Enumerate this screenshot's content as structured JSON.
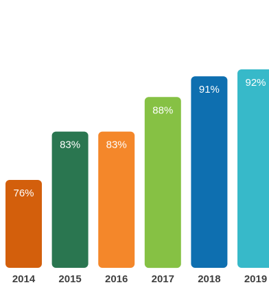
{
  "chart_data": {
    "type": "bar",
    "title": "",
    "xlabel": "",
    "ylabel": "",
    "ylim": [
      0,
      100
    ],
    "categories": [
      "2014",
      "2015",
      "2016",
      "2017",
      "2018",
      "2019"
    ],
    "values": [
      76,
      83,
      83,
      88,
      91,
      92
    ],
    "value_labels": [
      "76%",
      "83%",
      "83%",
      "88%",
      "91%",
      "92%"
    ],
    "colors": [
      "#d35f0c",
      "#2a7650",
      "#f4872a",
      "#86c144",
      "#0e6fb0",
      "#37b9c9"
    ],
    "grid": false,
    "legend": "none"
  }
}
